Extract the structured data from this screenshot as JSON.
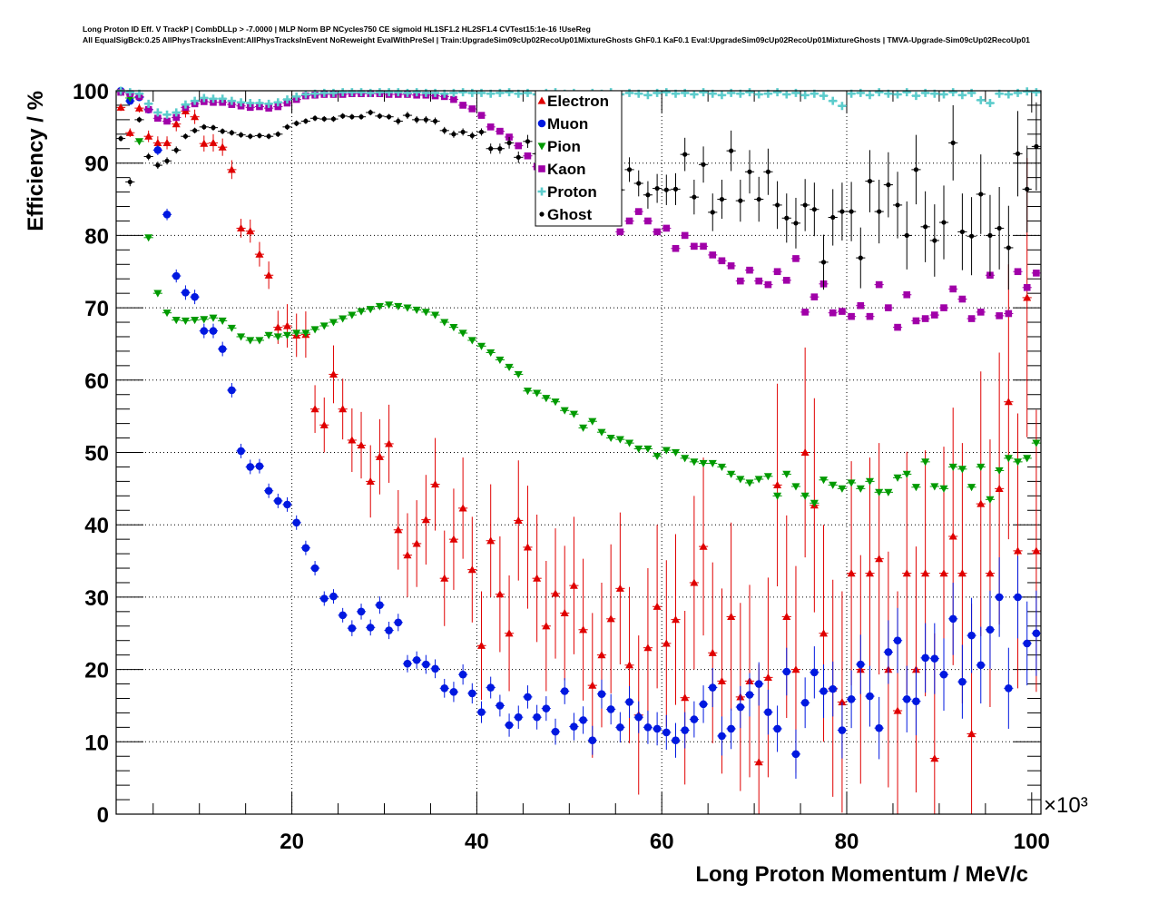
{
  "chart_data": {
    "type": "scatter",
    "title_lines": [
      "Long Proton ID Eff. V TrackP | CombDLLp > -7.0000 | MLP Norm BP NCycles750 CE sigmoid HL1SF1.2 HL2SF1.4 CVTest15:1e-16 !UseReg",
      "All EqualSigBck:0.25 AllPhysTracksInEvent:AllPhysTracksInEvent NoReweight EvalWithPreSel | Train:UpgradeSim09cUp02RecoUp01MixtureGhosts GhF0.1 KaF0.1 Eval:UpgradeSim09cUp02RecoUp01MixtureGhosts | TMVA-Upgrade-Sim09cUp02RecoUp01"
    ],
    "xlabel": "Long Proton Momentum / MeV/c",
    "x_multiplier": "×10³",
    "ylabel": "Efficiency / %",
    "xlim": [
      1,
      101
    ],
    "ylim": [
      0,
      100
    ],
    "x_ticks": [
      "20",
      "40",
      "60",
      "80",
      "100"
    ],
    "x_tick_values": [
      20,
      40,
      60,
      80,
      100
    ],
    "y_ticks": [
      "0",
      "10",
      "20",
      "30",
      "40",
      "50",
      "60",
      "70",
      "80",
      "90",
      "100"
    ],
    "y_tick_values": [
      0,
      10,
      20,
      30,
      40,
      50,
      60,
      70,
      80,
      90,
      100
    ],
    "grid": true,
    "legend_position": "top-center",
    "x_bin_centers": [
      1.5,
      2.5,
      3.5,
      4.5,
      5.5,
      6.5,
      7.5,
      8.5,
      9.5,
      10.5,
      11.5,
      12.5,
      13.5,
      14.5,
      15.5,
      16.5,
      17.5,
      18.5,
      19.5,
      20.5,
      21.5,
      22.5,
      23.5,
      24.5,
      25.5,
      26.5,
      27.5,
      28.5,
      29.5,
      30.5,
      31.5,
      32.5,
      33.5,
      34.5,
      35.5,
      36.5,
      37.5,
      38.5,
      39.5,
      40.5,
      41.5,
      42.5,
      43.5,
      44.5,
      45.5,
      46.5,
      47.5,
      48.5,
      49.5,
      50.5,
      51.5,
      52.5,
      53.5,
      54.5,
      55.5,
      56.5,
      57.5,
      58.5,
      59.5,
      60.5,
      61.5,
      62.5,
      63.5,
      64.5,
      65.5,
      66.5,
      67.5,
      68.5,
      69.5,
      70.5,
      71.5,
      72.5,
      73.5,
      74.5,
      75.5,
      76.5,
      77.5,
      78.5,
      79.5,
      80.5,
      81.5,
      82.5,
      83.5,
      84.5,
      85.5,
      86.5,
      87.5,
      88.5,
      89.5,
      90.5,
      91.5,
      92.5,
      93.5,
      94.5,
      95.5,
      96.5,
      97.5,
      98.5,
      99.5,
      100.5
    ],
    "series": [
      {
        "name": "Electron",
        "color": "#e00000",
        "marker": "triangle-up",
        "values": [
          97.7,
          94.2,
          97.6,
          93.7,
          92.8,
          92.8,
          95.4,
          97.2,
          96.4,
          92.7,
          92.8,
          92.2,
          89.1,
          81,
          80.6,
          77.4,
          74.5,
          67.3,
          67.5,
          66.2,
          66.3,
          56,
          53.8,
          60.8,
          56,
          51.7,
          51,
          46,
          49.4,
          51.2,
          39.3,
          35.8,
          37.4,
          40.7,
          45.6,
          32.6,
          38,
          42.3,
          33.8,
          23.3,
          37.8,
          30.4,
          25,
          40.6,
          36.9,
          32.6,
          26,
          30.5,
          27.8,
          31.6,
          25.5,
          17.8,
          22,
          27,
          31.2,
          20.6,
          13.7,
          23,
          28.7,
          23.6,
          26.9,
          16.1,
          32,
          37,
          22.3,
          18.4,
          27.3,
          16.2,
          18.4,
          7.2,
          18.9,
          45.5,
          27.3,
          20,
          50,
          42.7,
          25,
          17.4,
          15.5,
          33.3,
          20,
          33.3,
          35.3,
          20,
          14.3,
          33.3,
          20,
          33.3,
          7.7,
          33.3,
          38.4,
          33.3,
          11.1,
          42.9,
          33.3,
          45,
          57,
          36.4,
          71.4,
          36.4
        ],
        "errors": [
          0.5,
          0.6,
          0.6,
          0.8,
          0.9,
          0.9,
          1.0,
          0.9,
          1.0,
          1.1,
          1.2,
          1.2,
          1.3,
          1.3,
          1.6,
          1.7,
          1.9,
          2.3,
          3.0,
          3.0,
          3.2,
          3.3,
          3.8,
          4.0,
          4.2,
          4.4,
          4.6,
          5.0,
          5.2,
          5.4,
          5.5,
          5.8,
          6.0,
          6.2,
          6.4,
          6.6,
          7.0,
          7.0,
          7.3,
          7.5,
          7.8,
          8.0,
          8.0,
          8.3,
          8.5,
          8.8,
          9.0,
          9.0,
          9.3,
          9.5,
          9.8,
          10,
          10,
          10.3,
          10.5,
          10.8,
          11,
          11,
          11.3,
          11.5,
          11.8,
          12,
          12,
          12.3,
          12.5,
          12.8,
          13,
          13,
          13.3,
          13.5,
          13.8,
          14,
          14,
          14.3,
          14.5,
          14.8,
          15,
          15,
          15.3,
          15.5,
          15.8,
          16,
          16,
          16.3,
          16.5,
          16.8,
          17,
          17,
          17.3,
          17.5,
          17.8,
          18,
          18,
          18.3,
          18.5,
          18.8,
          19,
          19,
          19.3,
          19.5
        ]
      },
      {
        "name": "Muon",
        "color": "#0018e0",
        "marker": "circle",
        "values": [
          100,
          98.6,
          99.1,
          97.4,
          91.8,
          82.9,
          74.4,
          72.1,
          71.5,
          66.8,
          66.8,
          64.3,
          58.6,
          50.2,
          48,
          48.1,
          44.7,
          43.3,
          42.8,
          40.3,
          36.8,
          34,
          29.8,
          30.1,
          27.5,
          25.7,
          28,
          25.8,
          28.9,
          25.4,
          26.5,
          20.8,
          21.3,
          20.7,
          20.1,
          17.4,
          16.9,
          19.3,
          16.7,
          14.1,
          17.5,
          15,
          12.3,
          13.4,
          16.2,
          13.4,
          14.6,
          11.4,
          17,
          12.1,
          13,
          10.2,
          16.6,
          14.5,
          12,
          15.5,
          13.4,
          12,
          11.8,
          11.3,
          10.2,
          11.6,
          13.1,
          15.2,
          17.5,
          10.8,
          11.8,
          14.8,
          16.5,
          18,
          14.1,
          11.8,
          19.7,
          8.3,
          15.4,
          19.6,
          17,
          17.3,
          11.6,
          15.9,
          20.7,
          16.3,
          11.9,
          22.4,
          24,
          15.9,
          15.6,
          21.6,
          21.5,
          19.3,
          27,
          18.3,
          24.7,
          20.6,
          25.5,
          30,
          17.4,
          30,
          23.6,
          25
        ],
        "errors": [
          0.3,
          0.4,
          0.4,
          0.5,
          0.7,
          0.8,
          0.9,
          1,
          1,
          1,
          1,
          1,
          1,
          1,
          1,
          1,
          1,
          1,
          1,
          1,
          1,
          1,
          1,
          1,
          1,
          1.1,
          1.1,
          1.1,
          1.2,
          1.2,
          1.2,
          1.2,
          1.2,
          1.3,
          1.3,
          1.3,
          1.4,
          1.4,
          1.4,
          1.5,
          1.5,
          1.5,
          1.6,
          1.6,
          1.6,
          1.7,
          1.7,
          1.8,
          1.8,
          1.9,
          1.9,
          2,
          2,
          2.1,
          2.1,
          2.2,
          2.2,
          2.3,
          2.3,
          2.4,
          2.4,
          2.5,
          2.5,
          2.6,
          2.7,
          2.7,
          2.8,
          2.9,
          3,
          3,
          3.1,
          3.2,
          3.3,
          3.4,
          3.5,
          3.6,
          3.7,
          3.8,
          3.9,
          4,
          4.1,
          4.2,
          4.3,
          4.4,
          4.5,
          4.6,
          4.7,
          4.8,
          4.9,
          5,
          5,
          5.1,
          5.2,
          5.3,
          5.4,
          5.5,
          5.6,
          5.7,
          5.8,
          5.9
        ]
      },
      {
        "name": "Pion",
        "color": "#009a00",
        "marker": "triangle-down",
        "values": [
          99.8,
          99,
          93,
          79.7,
          72,
          69.3,
          68.3,
          68.2,
          68.3,
          68.4,
          68.6,
          68.2,
          67.2,
          66,
          65.5,
          65.5,
          66.2,
          66,
          66.2,
          66.5,
          66.5,
          67,
          67.5,
          68,
          68.5,
          69,
          69.5,
          69.8,
          70.2,
          70.4,
          70.2,
          70,
          69.7,
          69.4,
          69,
          68,
          67.3,
          66.5,
          65.5,
          64.7,
          63.8,
          62.8,
          61.8,
          60.8,
          58.5,
          58.2,
          57.5,
          57,
          55.8,
          55.3,
          53.4,
          54.3,
          52.8,
          52,
          51.8,
          51.3,
          50.5,
          50.5,
          49.5,
          50.3,
          50,
          49.2,
          48.7,
          48.5,
          48.5,
          48,
          47,
          46.3,
          45.8,
          46.3,
          46.7,
          44,
          47,
          45.3,
          44,
          43,
          46.2,
          45.5,
          45,
          45.8,
          45,
          46,
          44.5,
          44.5,
          46.5,
          47,
          45.2,
          48.7,
          45.3,
          45,
          48,
          47.7,
          45.2,
          48,
          43.5,
          47.5,
          49.2,
          48.7,
          49.2,
          51.3
        ]
      },
      {
        "name": "Kaon",
        "color": "#a000a8",
        "marker": "square",
        "values": [
          99.8,
          99.6,
          99.2,
          97.4,
          96.2,
          95.8,
          96.3,
          97.7,
          98.2,
          98.5,
          98.4,
          98.4,
          98.1,
          97.9,
          97.7,
          97.8,
          97.6,
          97.8,
          98.3,
          98.8,
          99.3,
          99.4,
          99.5,
          99.5,
          99.5,
          99.6,
          99.6,
          99.6,
          99.6,
          99.5,
          99.5,
          99.5,
          99.4,
          99.4,
          99.3,
          99.2,
          98.8,
          98,
          97.5,
          96.6,
          95,
          94.4,
          93.6,
          92.4,
          91,
          89.5,
          88.5,
          87.3,
          86.3,
          86,
          85.8,
          85,
          84.2,
          82.9,
          80.5,
          82,
          83.3,
          82,
          80.5,
          81,
          78.2,
          80,
          78.5,
          78.5,
          77.3,
          76.5,
          75.8,
          73.7,
          75.2,
          73.7,
          73.2,
          75,
          73.8,
          76.8,
          69.4,
          71.5,
          73.3,
          69.3,
          69.5,
          68.8,
          70.3,
          68.8,
          73.2,
          70,
          67.3,
          71.8,
          68.2,
          68.5,
          69,
          70,
          72.6,
          71.2,
          68.5,
          69.4,
          74.5,
          68.9,
          69.2,
          75,
          72.8,
          74.8
        ]
      },
      {
        "name": "Proton",
        "color": "#5ccccc",
        "marker": "cross",
        "values": [
          100,
          99.8,
          99.6,
          98.2,
          97,
          96.7,
          97,
          98.1,
          98.6,
          99,
          98.9,
          98.9,
          98.6,
          98.4,
          98.3,
          98.3,
          98.2,
          98.4,
          98.8,
          99.2,
          99.5,
          99.6,
          99.7,
          99.7,
          99.8,
          99.8,
          99.8,
          99.7,
          99.8,
          99.8,
          99.8,
          99.7,
          99.8,
          99.7,
          99.7,
          99.6,
          99.7,
          99.8,
          99.7,
          99.7,
          99.6,
          99.7,
          99.8,
          99.6,
          99.7,
          99.5,
          99.7,
          99.8,
          99.6,
          99.7,
          99.5,
          99.7,
          99.6,
          99.8,
          99.5,
          99.7,
          99.6,
          99.4,
          99.7,
          99.8,
          99.6,
          99.7,
          99.5,
          99.8,
          99.6,
          99.4,
          99.7,
          99.6,
          99.8,
          99.5,
          99.6,
          99.8,
          99.5,
          99.7,
          99.4,
          99.6,
          99.3,
          98.6,
          97.9,
          99.6,
          99.7,
          99.4,
          99.8,
          99.6,
          99.5,
          99.8,
          99.3,
          99.7,
          99.6,
          99.5,
          99.8,
          99.4,
          99.7,
          98.7,
          98.3,
          99.6,
          99.5,
          99.7,
          99.9,
          99.8
        ]
      },
      {
        "name": "Ghost",
        "color": "#000000",
        "marker": "dot",
        "values": [
          93.4,
          87.4,
          96,
          90.9,
          89.7,
          90.3,
          91.8,
          93.7,
          94.5,
          95,
          94.9,
          94.4,
          94.2,
          93.9,
          93.7,
          93.8,
          93.7,
          94,
          95,
          95.5,
          95.8,
          96.2,
          96.1,
          96.1,
          96.5,
          96.4,
          96.4,
          97,
          96.5,
          96.4,
          95.8,
          96.6,
          96,
          96,
          95.8,
          94.5,
          94,
          94.3,
          93.8,
          94.3,
          92,
          92,
          92.8,
          90.8,
          93,
          91.3,
          90.7,
          92.2,
          89.6,
          89.4,
          88.2,
          90.3,
          86.7,
          87.8,
          86.3,
          89.1,
          87.2,
          85.6,
          86.5,
          86.3,
          86.4,
          91.2,
          85.3,
          89.8,
          83.2,
          85,
          91.7,
          84.8,
          88.8,
          85,
          88.8,
          84.2,
          82.4,
          81.7,
          84.2,
          83.6,
          76.3,
          82.5,
          83.3,
          83.3,
          76.9,
          87.5,
          83.3,
          87,
          84.2,
          80,
          89.1,
          81.2,
          79.3,
          81.8,
          92.8,
          80.5,
          79.9,
          85.7,
          80,
          81,
          78.3,
          91.3,
          86.4,
          92.3
        ],
        "errors": [
          0.4,
          0.6,
          0.4,
          0.5,
          0.5,
          0.5,
          0.5,
          0.4,
          0.4,
          0.4,
          0.4,
          0.4,
          0.4,
          0.4,
          0.4,
          0.4,
          0.4,
          0.4,
          0.4,
          0.4,
          0.4,
          0.4,
          0.4,
          0.4,
          0.4,
          0.4,
          0.4,
          0.4,
          0.4,
          0.4,
          0.5,
          0.5,
          0.5,
          0.5,
          0.5,
          0.5,
          0.5,
          0.5,
          0.5,
          0.5,
          0.7,
          0.7,
          0.8,
          0.8,
          0.9,
          0.9,
          1,
          1,
          1.1,
          1.1,
          1.2,
          1.3,
          1.4,
          1.5,
          1.6,
          1.7,
          1.8,
          1.9,
          2,
          2.1,
          2.2,
          2.3,
          2.4,
          2.5,
          2.6,
          2.7,
          2.8,
          2.9,
          3,
          3.1,
          3.2,
          3.3,
          3.4,
          3.5,
          3.6,
          3.7,
          3.8,
          3.9,
          4,
          4.1,
          4.2,
          4.3,
          4.4,
          4.5,
          4.6,
          4.7,
          4.8,
          4.9,
          5,
          5.1,
          5.2,
          5.3,
          5.4,
          5.5,
          5.6,
          5.7,
          5.8,
          5.9,
          6,
          6.1
        ]
      }
    ]
  }
}
